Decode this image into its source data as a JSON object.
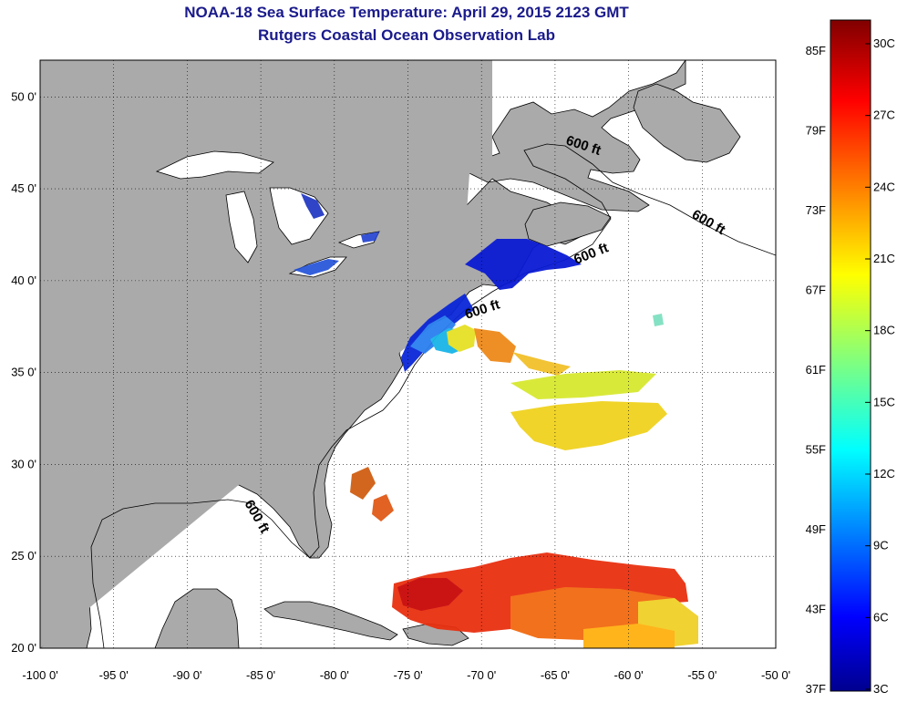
{
  "title": "NOAA-18 Sea Surface Temperature:  April 29, 2015 2123 GMT",
  "subtitle": "Rutgers Coastal Ocean Observation Lab",
  "map": {
    "lon_range": [
      -100,
      -50
    ],
    "lat_range": [
      20,
      52
    ],
    "grid": "dotted",
    "lon_ticks": [
      "-100 0'",
      "-95 0'",
      "-90 0'",
      "-85 0'",
      "-80 0'",
      "-75 0'",
      "-70 0'",
      "-65 0'",
      "-60 0'",
      "-55 0'",
      "-50 0'"
    ],
    "lat_ticks": [
      "20 0'",
      "25 0'",
      "30 0'",
      "35 0'",
      "40 0'",
      "45 0'",
      "50 0'"
    ],
    "lat_values": [
      20,
      25,
      30,
      35,
      40,
      45,
      50
    ],
    "contour_label": "600 ft",
    "land_color": "#aaaaaa",
    "water_color": "#ffffff"
  },
  "colorbar": {
    "f_labels": [
      "85F",
      "79F",
      "73F",
      "67F",
      "61F",
      "55F",
      "49F",
      "43F",
      "37F"
    ],
    "c_labels": [
      "30C",
      "27C",
      "24C",
      "21C",
      "18C",
      "15C",
      "12C",
      "9C",
      "6C",
      "3C"
    ],
    "colormap": "jet",
    "range_c": [
      3,
      31
    ]
  }
}
